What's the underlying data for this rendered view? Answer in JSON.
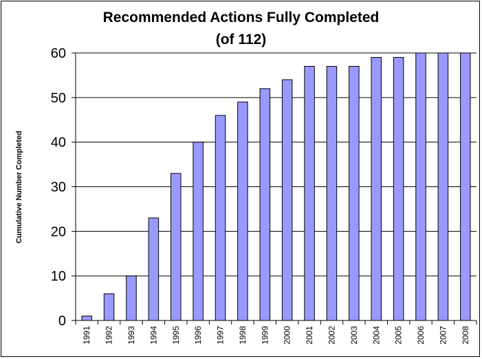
{
  "chart_data": {
    "type": "bar",
    "title": "Recommended Actions Fully Completed",
    "subtitle": "(of 112)",
    "xlabel": "",
    "ylabel": "Cumulative Number Completed",
    "categories": [
      "1991",
      "1992",
      "1993",
      "1994",
      "1995",
      "1996",
      "1997",
      "1998",
      "1999",
      "2000",
      "2001",
      "2002",
      "2003",
      "2004",
      "2005",
      "2006",
      "2007",
      "2008"
    ],
    "values": [
      1,
      6,
      10,
      23,
      33,
      40,
      46,
      49,
      52,
      54,
      57,
      57,
      57,
      59,
      59,
      60,
      60,
      60
    ],
    "ylim": [
      0,
      60
    ],
    "yticks": [
      0,
      10,
      20,
      30,
      40,
      50,
      60
    ],
    "grid": "horizontal",
    "legend": "none",
    "colors": {
      "bar_fill": "#9999ff",
      "bar_stroke": "#000000",
      "grid": "#000000",
      "background": "#ffffff"
    }
  }
}
